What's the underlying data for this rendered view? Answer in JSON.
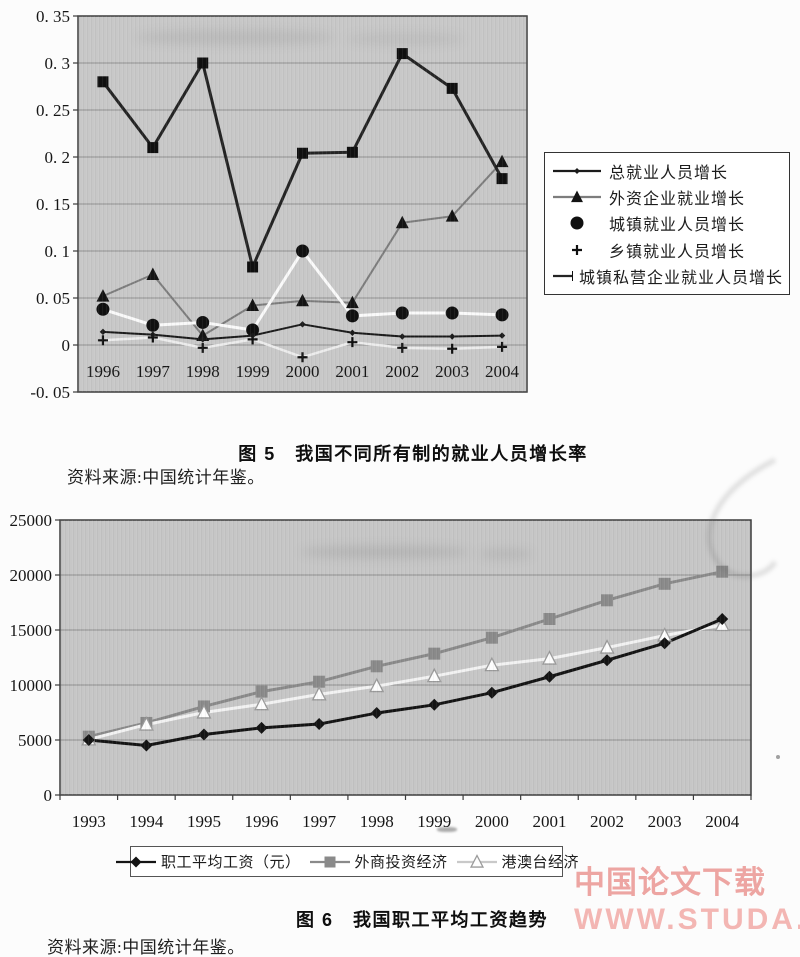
{
  "watermark": {
    "line1": "中国论文下载",
    "line2": "WWW.STUDA.",
    "color": "#eda5a2"
  },
  "figure5": {
    "caption": "图 5　我国不同所有制的就业人员增长率",
    "source": "资料来源:中国统计年鉴。"
  },
  "figure6": {
    "caption": "图 6　我国职工平均工资趋势",
    "source": "资料来源:中国统计年鉴。"
  },
  "chart_data": [
    {
      "type": "line",
      "title": "图 5 我国不同所有制的就业人员增长率",
      "categories": [
        "1996",
        "1997",
        "1998",
        "1999",
        "2000",
        "2001",
        "2002",
        "2003",
        "2004"
      ],
      "ylim": [
        -0.05,
        0.35
      ],
      "yticks": [
        0.35,
        0.3,
        0.25,
        0.2,
        0.15,
        0.1,
        0.05,
        0,
        -0.05
      ],
      "ytick_labels": [
        "0. 35",
        "0. 3",
        "0. 25",
        "0. 2",
        "0. 15",
        "0. 1",
        "0. 05",
        "0",
        "-0. 05"
      ],
      "grid": true,
      "legend_position": "right",
      "plot_bg": "#c8c8c8",
      "draw_order": [
        1,
        3,
        2,
        0,
        4
      ],
      "series": [
        {
          "name": "总就业人员增长",
          "marker": "diamond",
          "color": "#1b1b1b",
          "values": [
            0.014,
            0.011,
            0.006,
            0.01,
            0.022,
            0.013,
            0.009,
            0.009,
            0.01
          ],
          "legend_line": true
        },
        {
          "name": "外资企业就业增长",
          "marker": "triangle",
          "color": "#7d7d7d",
          "marker_color": "#141414",
          "values": [
            0.052,
            0.075,
            0.01,
            0.042,
            0.047,
            0.045,
            0.13,
            0.137,
            0.195
          ],
          "legend_line": true
        },
        {
          "name": "城镇就业人员增长",
          "marker": "circle",
          "color": "#fafafa",
          "marker_color": "#101010",
          "values": [
            0.038,
            0.021,
            0.024,
            0.016,
            0.1,
            0.031,
            0.034,
            0.034,
            0.032
          ],
          "legend_line": false
        },
        {
          "name": "乡镇就业人员增长",
          "marker": "plus",
          "color": "#ececec",
          "marker_color": "#101010",
          "values": [
            0.005,
            0.008,
            -0.003,
            0.006,
            -0.013,
            0.003,
            -0.003,
            -0.004,
            -0.002
          ],
          "legend_line": false
        },
        {
          "name": "城镇私营企业就业人员增长",
          "marker": "square",
          "color": "#242424",
          "marker_color": "#101010",
          "values": [
            0.28,
            0.21,
            0.3,
            0.083,
            0.204,
            0.205,
            0.31,
            0.273,
            0.177
          ],
          "legend_line": true
        }
      ]
    },
    {
      "type": "line",
      "title": "图 6 我国职工平均工资趋势",
      "categories": [
        "1993",
        "1994",
        "1995",
        "1996",
        "1997",
        "1998",
        "1999",
        "2000",
        "2001",
        "2002",
        "2003",
        "2004"
      ],
      "ylim": [
        0,
        25000
      ],
      "yticks": [
        25000,
        20000,
        15000,
        10000,
        5000,
        0
      ],
      "ytick_labels": [
        "25000",
        "20000",
        "15000",
        "10000",
        "5000",
        "0"
      ],
      "grid": true,
      "legend_position": "bottom",
      "plot_bg": "#c6c6c6",
      "draw_order": [
        1,
        2,
        0
      ],
      "series": [
        {
          "name": "职工平均工资（元）",
          "marker": "diamond",
          "color": "#141414",
          "values": [
            5000,
            4500,
            5500,
            6100,
            6450,
            7450,
            8200,
            9300,
            10750,
            12250,
            13800,
            16000
          ],
          "legend_line": true
        },
        {
          "name": "外商投资经济",
          "marker": "square",
          "color": "#8a8a8a",
          "values": [
            5300,
            6550,
            8050,
            9400,
            10300,
            11700,
            12850,
            14300,
            16000,
            17700,
            19200,
            20300
          ],
          "legend_line": true
        },
        {
          "name": "港澳台经济",
          "marker": "triangle",
          "color": "#f2f2f2",
          "marker_color": "#fdfdfd",
          "marker_edge": "#9a9a9a",
          "legend_line_color": "#c9c9c9",
          "values": [
            5050,
            6400,
            7500,
            8250,
            9150,
            9900,
            10800,
            11800,
            12400,
            13400,
            14500,
            15450
          ],
          "legend_line": true
        }
      ]
    }
  ]
}
